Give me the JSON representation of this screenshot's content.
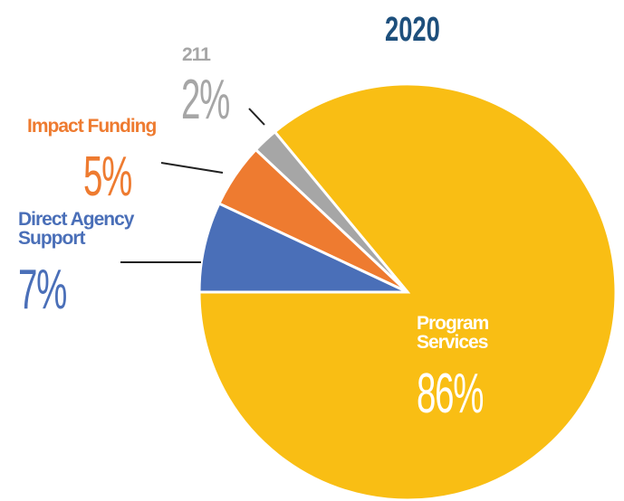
{
  "chart_data": {
    "type": "pie",
    "title": "2020",
    "categories": [
      "Direct Agency Support",
      "Impact Funding",
      "211",
      "Program Services"
    ],
    "values": [
      7,
      5,
      2,
      86
    ],
    "value_labels": [
      "7%",
      "5%",
      "2%",
      "86%"
    ],
    "colors": [
      "#4a6fb8",
      "#ee7b30",
      "#a6a6a6",
      "#f9be14"
    ]
  }
}
